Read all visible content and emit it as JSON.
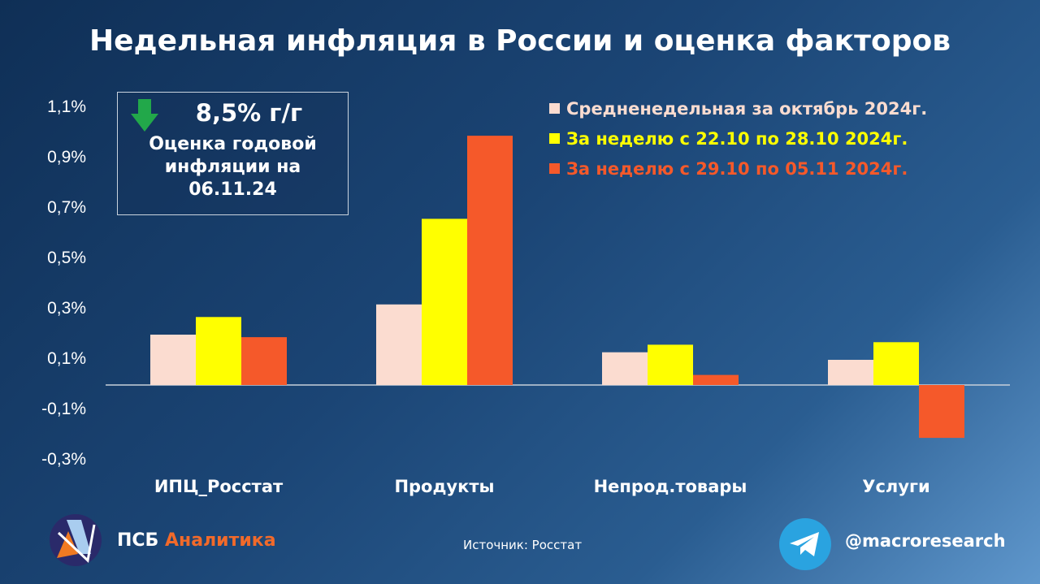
{
  "title": "Недельная инфляция в России и оценка факторов",
  "annotation": {
    "value": "8,5% г/г",
    "text_lines": [
      "Оценка годовой",
      "инфляции на",
      "06.11.24"
    ],
    "icon": "arrow-down-icon",
    "icon_color": "#22a84a"
  },
  "footer": {
    "source": "Источник: Росстат",
    "brand_left": "ПСБ",
    "brand_right": "Аналитика",
    "handle": "@macroresearch",
    "icon": "telegram-icon"
  },
  "chart_data": {
    "type": "bar",
    "title": "Недельная инфляция в России и оценка факторов",
    "categories": [
      "ИПЦ_Росстат",
      "Продукты",
      "Непрод.товары",
      "Услуги"
    ],
    "series": [
      {
        "name": "Средненедельная за октябрь 2024г.",
        "color": "#fbdcd0",
        "values": [
          0.2,
          0.32,
          0.13,
          0.1
        ]
      },
      {
        "name": "За неделю с 22.10 по 28.10 2024г.",
        "color": "#ffff00",
        "values": [
          0.27,
          0.66,
          0.16,
          0.17
        ]
      },
      {
        "name": "За неделю с 29.10 по 05.11 2024г.",
        "color": "#f5592a",
        "values": [
          0.19,
          0.99,
          0.04,
          -0.21
        ]
      }
    ],
    "yticks": [
      "1,1%",
      "0,9%",
      "0,7%",
      "0,5%",
      "0,3%",
      "0,1%",
      "-0,1%",
      "-0,3%"
    ],
    "ytick_values": [
      1.1,
      0.9,
      0.7,
      0.5,
      0.3,
      0.1,
      -0.1,
      -0.3
    ],
    "ylim": [
      -0.3,
      1.1
    ],
    "xlabel": "",
    "ylabel": "",
    "legend": "top-right",
    "grid": false
  }
}
